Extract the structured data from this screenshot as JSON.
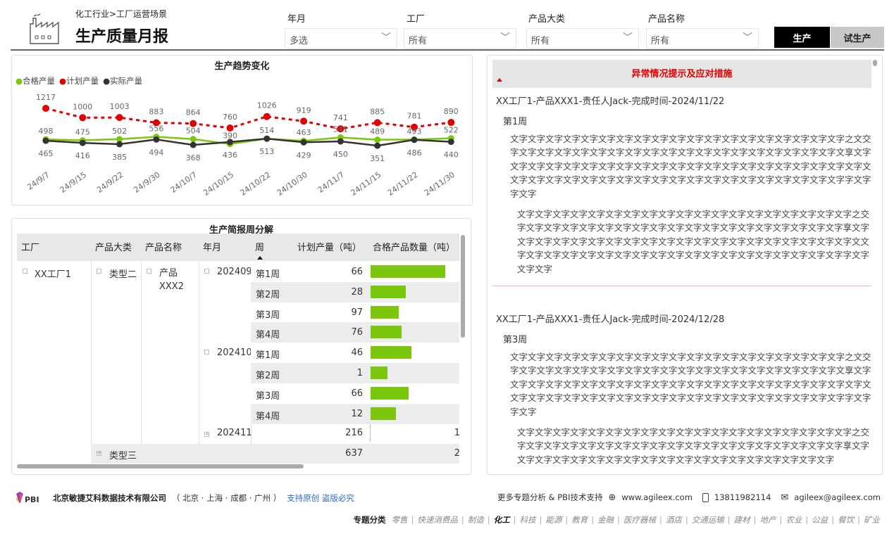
{
  "header": {
    "breadcrumb": "化工行业>工厂运营场景",
    "title": "生产质量月报",
    "icon": "factory-icon"
  },
  "filters": [
    {
      "label": "年月",
      "value": "多选"
    },
    {
      "label": "工厂",
      "value": "所有"
    },
    {
      "label": "产品大类",
      "value": "所有"
    },
    {
      "label": "产品名称",
      "value": "所有"
    }
  ],
  "mode_buttons": {
    "active": "生产",
    "inactive": "试生产"
  },
  "colors": {
    "qualified": "#7ac70c",
    "planned": "#e00000",
    "actual": "#333333",
    "alert": "#e00000"
  },
  "chart_data": {
    "type": "line",
    "title": "生产趋势变化",
    "legend_position": "top-left",
    "categories": [
      "24/9/7",
      "24/9/15",
      "24/9/22",
      "24/9/30",
      "24/10/7",
      "24/10/15",
      "24/10/22",
      "24/10/30",
      "24/11/7",
      "24/11/15",
      "24/11/22",
      "24/11/30"
    ],
    "series": [
      {
        "name": "合格产量",
        "values": [
          498,
          475,
          502,
          556,
          504,
          390,
          514,
          463,
          541,
          489,
          493,
          522
        ]
      },
      {
        "name": "计划产量",
        "values": [
          1217,
          1000,
          1003,
          883,
          864,
          760,
          1026,
          919,
          741,
          885,
          781,
          890
        ]
      },
      {
        "name": "实际产量",
        "values": [
          465,
          416,
          385,
          494,
          368,
          436,
          513,
          429,
          450,
          351,
          486,
          440
        ]
      }
    ]
  },
  "table": {
    "title": "生产简报周分解",
    "columns": [
      "工厂",
      "产品大类",
      "产品名称",
      "年月",
      "周",
      "计划产量（吨）",
      "合格产品数量（吨）"
    ],
    "factory": "XX工厂1",
    "category": "类型二",
    "product": "产品\nXXX2",
    "months": [
      {
        "month": "202409",
        "weeks": [
          {
            "week": "第1周",
            "planned": "66",
            "qualified": 53
          },
          {
            "week": "第2周",
            "planned": "28",
            "qualified": 25
          },
          {
            "week": "第3周",
            "planned": "97",
            "qualified": 20
          },
          {
            "week": "第4周",
            "planned": "76",
            "qualified": 22
          }
        ]
      },
      {
        "month": "202410",
        "weeks": [
          {
            "week": "第1周",
            "planned": "46",
            "qualified": 29
          },
          {
            "week": "第2周",
            "planned": "1",
            "qualified": 12
          },
          {
            "week": "第3周",
            "planned": "66",
            "qualified": 27
          },
          {
            "week": "第4周",
            "planned": "12",
            "qualified": 18
          }
        ]
      }
    ],
    "collapsed_month": {
      "month": "202411",
      "planned": "216",
      "qualified": "1"
    },
    "collapsed_category": {
      "category": "类型三",
      "planned": "637",
      "qualified": "2"
    }
  },
  "alerts": {
    "title": "异常情况提示及应对措施",
    "items": [
      {
        "heading": "XX工厂1-产品XXX1-责任人Jack-完成时间-2024/11/22",
        "week": "第1周",
        "p1": "文字文字文字文字文字文字文字文字文字文字文字文字文字文字文字文字文字文字文字之文交字文字文字文字文字文字文字文字文字文字文字文字文字文字文字文字文字文字文字文享文字文字文字文字文字文字文字文字文字文字文字文字文字文字文字文字文字文字文字文字文字文文字文字文字文字文字文字文字文字文字文字文字文字文字文字文字文字文字文字文字字文字字文字",
        "p2": "文字文字文字文字文字文字文字文字文字文字文字文字文字文字文字文字文字文字文字之交字文字文字文字文字文字文字文字文字文字文字文字文字文字文字文字文字文字文字享文字文字文字文字文字文字文字文字文字文字文字文字文字文字文字文字文字文字文字文字文文字文字文字文字文字文字文字文字文字文字文字文字文字文字文字文字文字文字文字字文字文字文字"
      },
      {
        "heading": "XX工厂1-产品XXX1-责任人Jack-完成时间-2024/12/28",
        "week": "第3周",
        "p1": "文字文字文字文字文字文字文字文字文字文字文字文字文字文字文字文字文字文字文字之文交字文字文字文字文字文字文字文字文字文字文字文字文字文字文字文字文字文字文字文享文字文字文字文字文字文字文字文字文字文字文字文字文字文字文字文字文字文字文字文字文字文文字文字文字文字文字文字文字文字文字文字文字文字文字文字文字文字文字文字文字字文字字文字",
        "p2": "文字文字文字文字文字文字文字文字文字文字文字文字文字文字文字文字文字文字文字之交字文字文字文字文字文字文字文字文字文字文字文字文字文字文字文字文字文字文字享文字文字文字文字文字文字文字文字文字文字文字文字文字文字文字文字文字文字文字"
      }
    ]
  },
  "footer": {
    "company": "北京敏捷艾科数据技术有限公司",
    "cities": "（ 北京 · 上海 · 成都 · 广州 ）",
    "original": "支持原创 盗版必究",
    "more": "更多专题分析 & PBI技术支持",
    "website": "www.agileex.com",
    "phone": "13811982114",
    "email": "agileex@agileex.com",
    "topic_label": "专题分类",
    "topics": [
      "零售",
      "快速消费品",
      "制造",
      "化工",
      "科技",
      "能源",
      "教育",
      "金融",
      "医疗器械",
      "酒店",
      "交通运输",
      "建材",
      "地产",
      "农业",
      "公益",
      "餐饮",
      "矿业"
    ],
    "active_topic": "化工"
  }
}
